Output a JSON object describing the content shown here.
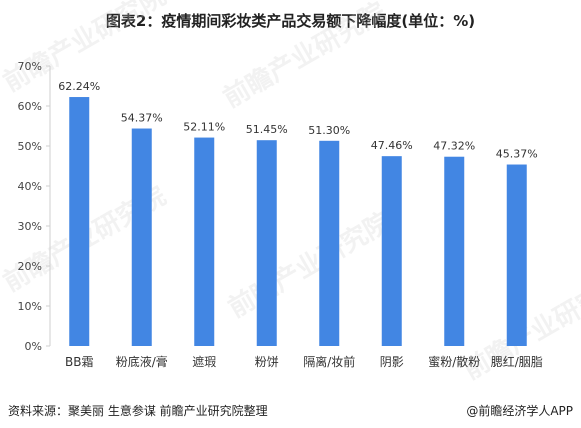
{
  "chart_data": {
    "type": "bar",
    "title": "图表2：疫情期间彩妆类产品交易额下降幅度(单位：%)",
    "categories": [
      "BB霜",
      "粉底液/膏",
      "遮瑕",
      "粉饼",
      "隔离/妆前",
      "阴影",
      "蜜粉/散粉",
      "腮红/胭脂"
    ],
    "values": [
      62.24,
      54.37,
      52.11,
      51.45,
      51.3,
      47.46,
      47.32,
      45.37
    ],
    "data_labels": [
      "62.24%",
      "54.37%",
      "52.11%",
      "51.45%",
      "51.30%",
      "47.46%",
      "47.32%",
      "45.37%"
    ],
    "ylim": [
      0,
      70
    ],
    "yticks": [
      "0%",
      "10%",
      "20%",
      "30%",
      "40%",
      "50%",
      "60%",
      "70%"
    ],
    "ytick_values": [
      0,
      10,
      20,
      30,
      40,
      50,
      60,
      70
    ],
    "xlabel": "",
    "ylabel": "",
    "grid": false,
    "bar_color": "#4286E3"
  },
  "footer": {
    "source": "资料来源：聚美丽 生意参谋 前瞻产业研究院整理",
    "brand": "@前瞻经济学人APP"
  },
  "watermark": "前瞻产业研究院"
}
